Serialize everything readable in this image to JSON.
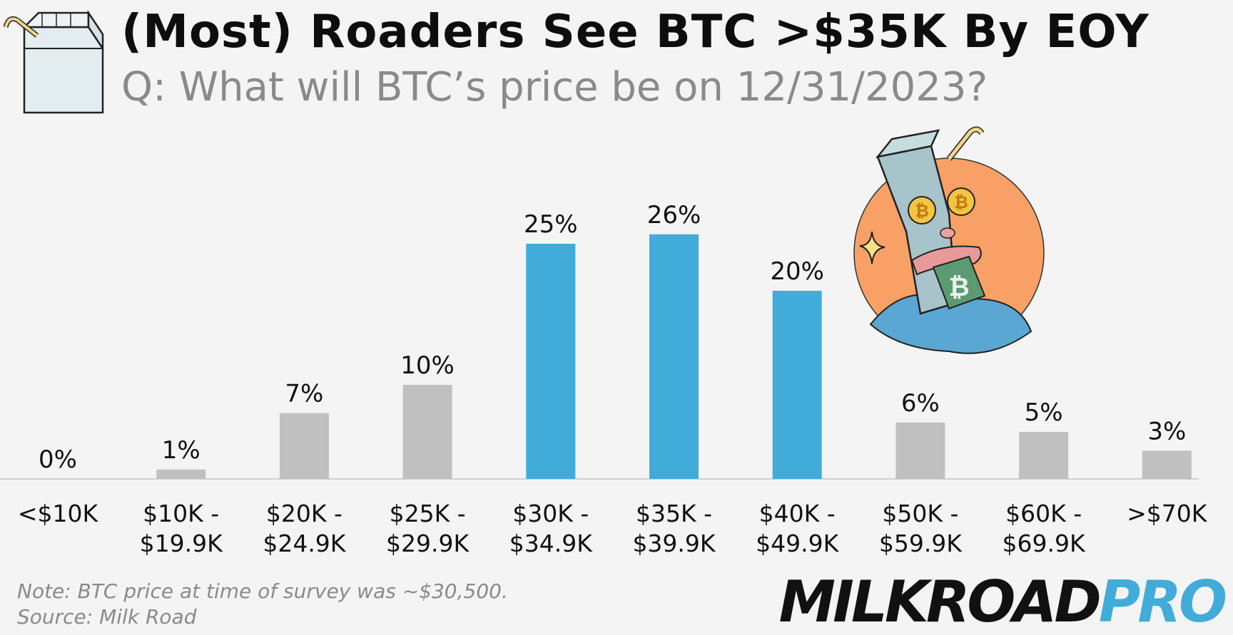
{
  "header": {
    "title": "(Most) Roaders See BTC >$35K By EOY",
    "subtitle": "Q: What will BTC’s price be on 12/31/2023?"
  },
  "footer": {
    "note": "Note: BTC price at time of survey was ~$30,500.",
    "source": "Source: Milk Road"
  },
  "brand": {
    "part1": "MILKROAD",
    "part2": "PRO"
  },
  "colors": {
    "highlight": "#41acd9",
    "default_bar": "#c0c0c0",
    "background": "#f4f4f4",
    "mascot_circle": "#f9a066"
  },
  "chart_data": {
    "type": "bar",
    "title": "(Most) Roaders See BTC >$35K By EOY",
    "subtitle": "Q: What will BTC’s price be on 12/31/2023?",
    "categories": [
      [
        "<$10K"
      ],
      [
        "$10K -",
        "$19.9K"
      ],
      [
        "$20K -",
        "$24.9K"
      ],
      [
        "$25K -",
        "$29.9K"
      ],
      [
        "$30K -",
        "$34.9K"
      ],
      [
        "$35K -",
        "$39.9K"
      ],
      [
        "$40K -",
        "$49.9K"
      ],
      [
        "$50K -",
        "$59.9K"
      ],
      [
        "$60K -",
        "$69.9K"
      ],
      [
        ">$70K"
      ]
    ],
    "values": [
      0,
      1,
      7,
      10,
      25,
      26,
      20,
      6,
      5,
      3
    ],
    "value_labels": [
      "0%",
      "1%",
      "7%",
      "10%",
      "25%",
      "26%",
      "20%",
      "6%",
      "5%",
      "3%"
    ],
    "highlighted": [
      false,
      false,
      false,
      false,
      true,
      true,
      true,
      false,
      false,
      false
    ],
    "unit": "%",
    "ylim": [
      0,
      26
    ],
    "grid": false,
    "legend": "none"
  }
}
